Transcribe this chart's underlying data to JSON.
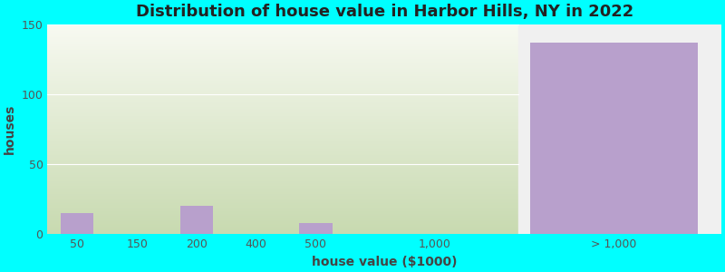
{
  "title": "Distribution of house value in Harbor Hills, NY in 2022",
  "xlabel": "house value ($1000)",
  "ylabel": "houses",
  "background_color": "#00FFFF",
  "bar_color": "#b8a0cc",
  "categories": [
    "50",
    "150",
    "200",
    "400",
    "500",
    "1,000",
    "> 1,000"
  ],
  "values": [
    15,
    0,
    20,
    0,
    8,
    0,
    137
  ],
  "ylim": [
    0,
    150
  ],
  "yticks": [
    0,
    50,
    100,
    150
  ],
  "title_fontsize": 13,
  "axis_label_fontsize": 10,
  "tick_fontsize": 9,
  "x_positions": [
    0,
    1,
    2,
    3,
    4,
    6,
    9
  ],
  "bar_widths": [
    0.55,
    0.55,
    0.55,
    0.55,
    0.55,
    0.55,
    2.8
  ],
  "xlim": [
    -0.5,
    10.8
  ],
  "left_section_end": 7.4,
  "right_section_start": 7.4,
  "green_top": "#f5f8ee",
  "green_bottom": "#c8dab0",
  "purple_bar_color": "#b8a0cc",
  "white_strip_color": "#f0f0f0"
}
